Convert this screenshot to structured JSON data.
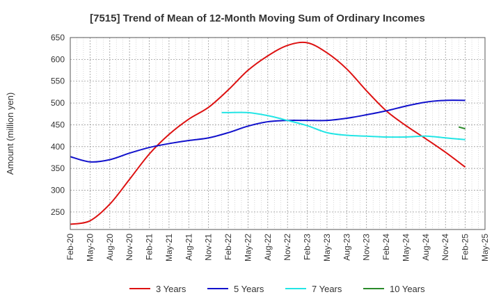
{
  "chart_data": {
    "type": "line",
    "title": "[7515]  Trend of Mean of 12-Month Moving Sum of Ordinary Incomes",
    "xlabel": "",
    "ylabel": "Amount (million yen)",
    "ylim": [
      210,
      650
    ],
    "yticks": [
      250,
      300,
      350,
      400,
      450,
      500,
      550,
      600,
      650
    ],
    "x_ticks": [
      "Feb-20",
      "May-20",
      "Aug-20",
      "Nov-20",
      "Feb-21",
      "May-21",
      "Aug-21",
      "Nov-21",
      "Feb-22",
      "May-22",
      "Aug-22",
      "Nov-22",
      "Feb-23",
      "May-23",
      "Aug-23",
      "Nov-23",
      "Feb-24",
      "May-24",
      "Aug-24",
      "Nov-24",
      "Feb-25",
      "May-25"
    ],
    "grid": true,
    "legend_position": "bottom",
    "series": [
      {
        "name": "3 Years",
        "color": "#dd1111",
        "x": [
          0,
          1,
          2,
          3,
          4,
          5,
          6,
          7,
          8,
          9,
          10,
          11,
          12,
          13,
          14,
          15,
          16,
          17,
          18,
          19,
          20
        ],
        "values": [
          222,
          230,
          268,
          325,
          383,
          428,
          463,
          490,
          530,
          575,
          608,
          632,
          638,
          615,
          578,
          528,
          482,
          448,
          418,
          387,
          353
        ]
      },
      {
        "name": "5 Years",
        "color": "#1111cc",
        "x": [
          0,
          1,
          2,
          3,
          4,
          5,
          6,
          7,
          8,
          9,
          10,
          11,
          12,
          13,
          14,
          15,
          16,
          17,
          18,
          19,
          20
        ],
        "values": [
          377,
          365,
          370,
          385,
          398,
          407,
          414,
          420,
          432,
          447,
          457,
          460,
          460,
          460,
          465,
          473,
          482,
          493,
          502,
          506,
          506
        ]
      },
      {
        "name": "7 Years",
        "color": "#22e5e5",
        "x": [
          7.667,
          8,
          9,
          10,
          11,
          12,
          13,
          14,
          15,
          16,
          17,
          18,
          19,
          20
        ],
        "values": [
          478,
          478,
          478,
          471,
          460,
          448,
          432,
          426,
          424,
          422,
          422,
          424,
          420,
          416
        ]
      },
      {
        "name": "10 Years",
        "color": "#2a8a2a",
        "x": [
          19.667,
          20
        ],
        "values": [
          445,
          441
        ]
      }
    ]
  }
}
